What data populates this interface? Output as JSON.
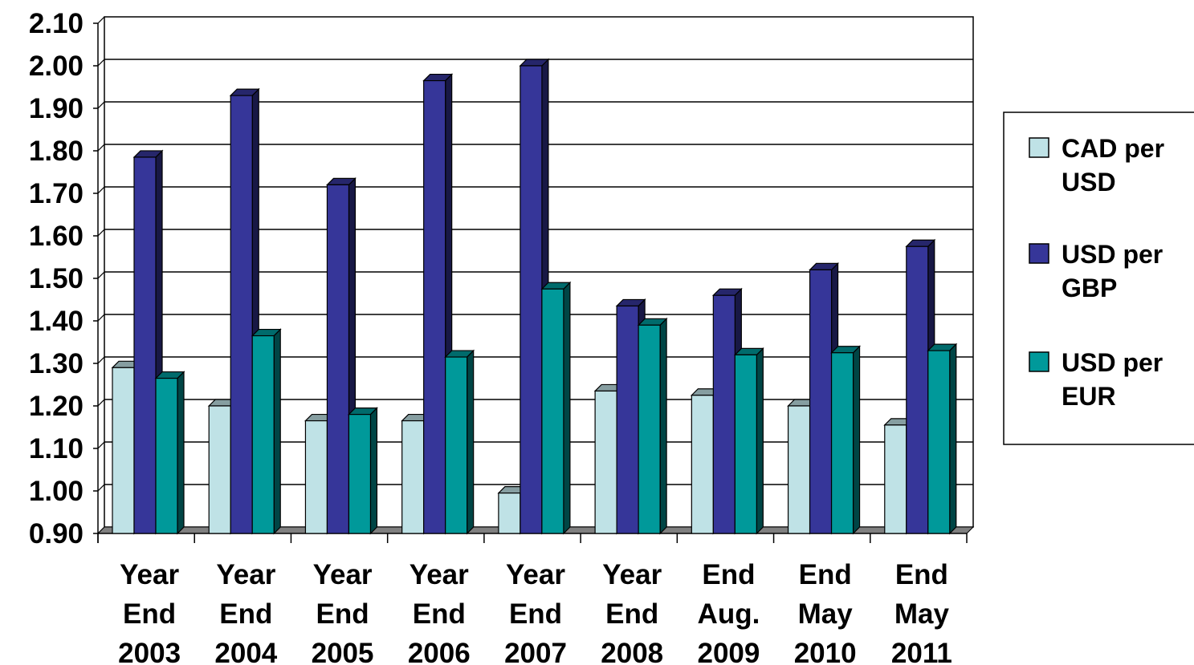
{
  "chart_data": {
    "type": "bar",
    "categories": [
      [
        "Year",
        "End",
        "2003"
      ],
      [
        "Year",
        "End",
        "2004"
      ],
      [
        "Year",
        "End",
        "2005"
      ],
      [
        "Year",
        "End",
        "2006"
      ],
      [
        "Year",
        "End",
        "2007"
      ],
      [
        "Year",
        "End",
        "2008"
      ],
      [
        "End",
        "Aug.",
        "2009"
      ],
      [
        "End",
        "May",
        "2010"
      ],
      [
        "End",
        "May",
        "2011"
      ]
    ],
    "series": [
      {
        "name": [
          "CAD per",
          "USD"
        ],
        "color": "#BFE2E6",
        "values": [
          1.29,
          1.2,
          1.165,
          1.165,
          0.995,
          1.235,
          1.225,
          1.2,
          1.155
        ]
      },
      {
        "name": [
          "USD per",
          "GBP"
        ],
        "color": "#363699",
        "values": [
          1.785,
          1.93,
          1.72,
          1.965,
          2.0,
          1.435,
          1.46,
          1.52,
          1.575
        ]
      },
      {
        "name": [
          "USD per",
          "EUR"
        ],
        "color": "#00999A",
        "values": [
          1.265,
          1.365,
          1.18,
          1.315,
          1.475,
          1.39,
          1.32,
          1.325,
          1.33
        ]
      }
    ],
    "yticks": [
      "0.90",
      "1.00",
      "1.10",
      "1.20",
      "1.30",
      "1.40",
      "1.50",
      "1.60",
      "1.70",
      "1.80",
      "1.90",
      "2.00",
      "2.10"
    ],
    "ylim": [
      0.9,
      2.1
    ],
    "grid": true,
    "legend_position": "right",
    "title": "",
    "xlabel": "",
    "ylabel": ""
  }
}
